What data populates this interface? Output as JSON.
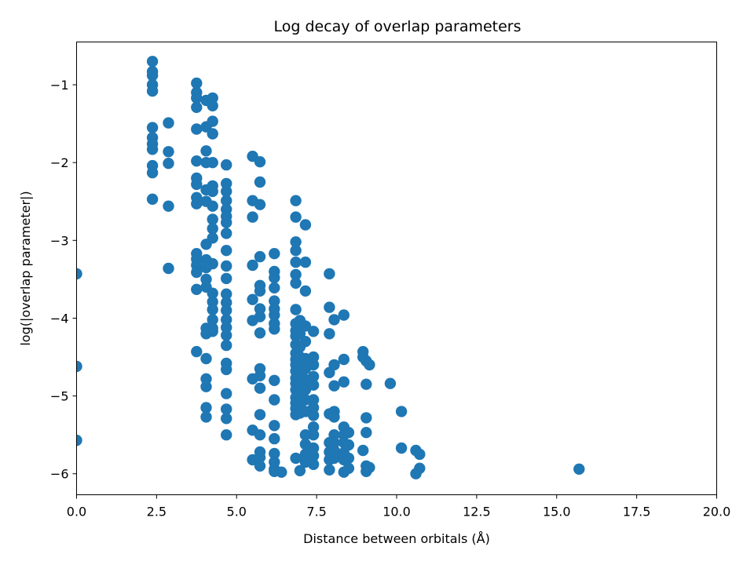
{
  "chart_data": {
    "type": "scatter",
    "title": "Log decay of overlap parameters",
    "xlabel": "Distance between orbitals (Å)",
    "ylabel": "log(|overlap parameter|)",
    "xlim": [
      0,
      20
    ],
    "ylim": [
      -6.27,
      -0.45
    ],
    "x_ticks": [
      0,
      2.5,
      5,
      7.5,
      10,
      12.5,
      15,
      17.5,
      20
    ],
    "x_tick_labels": [
      "0.0",
      "2.5",
      "5.0",
      "7.5",
      "10.0",
      "12.5",
      "15.0",
      "17.5",
      "20.0"
    ],
    "y_ticks": [
      -6,
      -5,
      -4,
      -3,
      -2,
      -1
    ],
    "y_tick_labels": [
      "−6",
      "−5",
      "−4",
      "−3",
      "−2",
      "−1"
    ],
    "grid": false,
    "marker_color": "#1f77b4",
    "series": [
      {
        "points": [
          [
            0.0,
            -3.43
          ],
          [
            0.0,
            -4.62
          ],
          [
            0.0,
            -5.57
          ],
          [
            2.37,
            -0.7
          ],
          [
            2.37,
            -0.83
          ],
          [
            2.37,
            -0.88
          ],
          [
            2.37,
            -1.0
          ],
          [
            2.37,
            -1.08
          ],
          [
            2.37,
            -1.55
          ],
          [
            2.37,
            -1.68
          ],
          [
            2.37,
            -1.76
          ],
          [
            2.37,
            -1.83
          ],
          [
            2.37,
            -2.04
          ],
          [
            2.37,
            -2.13
          ],
          [
            2.37,
            -2.47
          ],
          [
            2.87,
            -1.49
          ],
          [
            2.87,
            -1.86
          ],
          [
            2.87,
            -2.01
          ],
          [
            2.87,
            -2.56
          ],
          [
            2.87,
            -3.36
          ],
          [
            3.75,
            -0.98
          ],
          [
            3.75,
            -1.1
          ],
          [
            3.75,
            -1.17
          ],
          [
            3.75,
            -1.29
          ],
          [
            3.75,
            -1.57
          ],
          [
            3.75,
            -1.98
          ],
          [
            3.75,
            -2.2
          ],
          [
            3.75,
            -2.28
          ],
          [
            3.75,
            -2.45
          ],
          [
            3.75,
            -2.53
          ],
          [
            3.75,
            -3.17
          ],
          [
            3.75,
            -3.24
          ],
          [
            3.75,
            -3.32
          ],
          [
            3.75,
            -3.41
          ],
          [
            3.75,
            -3.63
          ],
          [
            3.75,
            -4.43
          ],
          [
            4.05,
            -1.2
          ],
          [
            4.05,
            -1.54
          ],
          [
            4.05,
            -1.85
          ],
          [
            4.05,
            -2.0
          ],
          [
            4.05,
            -2.35
          ],
          [
            4.05,
            -2.5
          ],
          [
            4.05,
            -3.05
          ],
          [
            4.05,
            -3.25
          ],
          [
            4.05,
            -3.35
          ],
          [
            4.05,
            -3.5
          ],
          [
            4.05,
            -3.6
          ],
          [
            4.05,
            -4.13
          ],
          [
            4.05,
            -4.2
          ],
          [
            4.05,
            -4.52
          ],
          [
            4.05,
            -4.78
          ],
          [
            4.05,
            -4.88
          ],
          [
            4.05,
            -5.15
          ],
          [
            4.05,
            -5.27
          ],
          [
            4.25,
            -1.17
          ],
          [
            4.25,
            -1.27
          ],
          [
            4.25,
            -1.47
          ],
          [
            4.25,
            -1.63
          ],
          [
            4.25,
            -2.0
          ],
          [
            4.25,
            -2.3
          ],
          [
            4.25,
            -2.37
          ],
          [
            4.25,
            -2.56
          ],
          [
            4.25,
            -2.73
          ],
          [
            4.25,
            -2.85
          ],
          [
            4.25,
            -2.97
          ],
          [
            4.25,
            -3.3
          ],
          [
            4.25,
            -3.68
          ],
          [
            4.25,
            -3.79
          ],
          [
            4.25,
            -3.89
          ],
          [
            4.25,
            -4.02
          ],
          [
            4.25,
            -4.13
          ],
          [
            4.25,
            -4.17
          ],
          [
            4.68,
            -2.03
          ],
          [
            4.68,
            -2.27
          ],
          [
            4.68,
            -2.37
          ],
          [
            4.68,
            -2.49
          ],
          [
            4.68,
            -2.6
          ],
          [
            4.68,
            -2.69
          ],
          [
            4.68,
            -2.77
          ],
          [
            4.68,
            -2.91
          ],
          [
            4.68,
            -3.13
          ],
          [
            4.68,
            -3.33
          ],
          [
            4.68,
            -3.49
          ],
          [
            4.68,
            -3.69
          ],
          [
            4.68,
            -3.8
          ],
          [
            4.68,
            -3.9
          ],
          [
            4.68,
            -4.02
          ],
          [
            4.68,
            -4.12
          ],
          [
            4.68,
            -4.22
          ],
          [
            4.68,
            -4.35
          ],
          [
            4.68,
            -4.58
          ],
          [
            4.68,
            -4.66
          ],
          [
            4.68,
            -4.97
          ],
          [
            4.68,
            -5.17
          ],
          [
            4.68,
            -5.29
          ],
          [
            4.68,
            -5.5
          ],
          [
            5.5,
            -1.92
          ],
          [
            5.5,
            -2.49
          ],
          [
            5.5,
            -2.7
          ],
          [
            5.5,
            -3.32
          ],
          [
            5.5,
            -3.76
          ],
          [
            5.5,
            -4.03
          ],
          [
            5.5,
            -4.78
          ],
          [
            5.5,
            -5.44
          ],
          [
            5.5,
            -5.82
          ],
          [
            5.73,
            -1.99
          ],
          [
            5.73,
            -2.25
          ],
          [
            5.73,
            -2.54
          ],
          [
            5.73,
            -3.21
          ],
          [
            5.73,
            -3.58
          ],
          [
            5.73,
            -3.65
          ],
          [
            5.73,
            -3.88
          ],
          [
            5.73,
            -3.98
          ],
          [
            5.73,
            -4.19
          ],
          [
            5.73,
            -4.65
          ],
          [
            5.73,
            -4.74
          ],
          [
            5.73,
            -4.9
          ],
          [
            5.73,
            -5.24
          ],
          [
            5.73,
            -5.5
          ],
          [
            5.73,
            -5.72
          ],
          [
            5.73,
            -5.79
          ],
          [
            5.73,
            -5.9
          ],
          [
            6.18,
            -3.17
          ],
          [
            6.18,
            -3.4
          ],
          [
            6.18,
            -3.48
          ],
          [
            6.18,
            -3.61
          ],
          [
            6.18,
            -3.78
          ],
          [
            6.18,
            -3.88
          ],
          [
            6.18,
            -3.96
          ],
          [
            6.18,
            -4.07
          ],
          [
            6.18,
            -4.14
          ],
          [
            6.18,
            -4.8
          ],
          [
            6.18,
            -5.05
          ],
          [
            6.18,
            -5.38
          ],
          [
            6.18,
            -5.55
          ],
          [
            6.18,
            -5.74
          ],
          [
            6.18,
            -5.85
          ],
          [
            6.18,
            -5.94
          ],
          [
            6.18,
            -5.97
          ],
          [
            6.4,
            -5.98
          ],
          [
            6.85,
            -2.49
          ],
          [
            6.85,
            -2.7
          ],
          [
            6.85,
            -3.02
          ],
          [
            6.85,
            -3.13
          ],
          [
            6.85,
            -3.28
          ],
          [
            6.85,
            -3.44
          ],
          [
            6.85,
            -3.55
          ],
          [
            6.85,
            -3.89
          ],
          [
            6.85,
            -4.07
          ],
          [
            6.85,
            -4.16
          ],
          [
            6.85,
            -4.23
          ],
          [
            6.85,
            -4.34
          ],
          [
            6.85,
            -4.45
          ],
          [
            6.85,
            -4.53
          ],
          [
            6.85,
            -4.6
          ],
          [
            6.85,
            -4.68
          ],
          [
            6.85,
            -4.77
          ],
          [
            6.85,
            -4.84
          ],
          [
            6.85,
            -4.92
          ],
          [
            6.85,
            -5.02
          ],
          [
            6.85,
            -5.09
          ],
          [
            6.85,
            -5.16
          ],
          [
            6.85,
            -5.24
          ],
          [
            6.85,
            -5.8
          ],
          [
            6.98,
            -4.03
          ],
          [
            6.98,
            -4.2
          ],
          [
            6.98,
            -4.37
          ],
          [
            6.98,
            -4.5
          ],
          [
            6.98,
            -4.6
          ],
          [
            6.98,
            -4.72
          ],
          [
            6.98,
            -4.82
          ],
          [
            6.98,
            -4.92
          ],
          [
            6.98,
            -5.02
          ],
          [
            6.98,
            -5.12
          ],
          [
            6.98,
            -5.22
          ],
          [
            6.98,
            -5.96
          ],
          [
            7.15,
            -2.8
          ],
          [
            7.15,
            -3.28
          ],
          [
            7.15,
            -3.65
          ],
          [
            7.15,
            -4.1
          ],
          [
            7.15,
            -4.3
          ],
          [
            7.15,
            -4.52
          ],
          [
            7.15,
            -4.65
          ],
          [
            7.15,
            -4.79
          ],
          [
            7.15,
            -4.92
          ],
          [
            7.15,
            -5.05
          ],
          [
            7.15,
            -5.2
          ],
          [
            7.15,
            -5.5
          ],
          [
            7.15,
            -5.62
          ],
          [
            7.15,
            -5.75
          ],
          [
            7.15,
            -5.85
          ],
          [
            7.4,
            -4.17
          ],
          [
            7.4,
            -4.5
          ],
          [
            7.4,
            -4.6
          ],
          [
            7.4,
            -4.75
          ],
          [
            7.4,
            -4.86
          ],
          [
            7.4,
            -5.05
          ],
          [
            7.4,
            -5.15
          ],
          [
            7.4,
            -5.25
          ],
          [
            7.4,
            -5.4
          ],
          [
            7.4,
            -5.5
          ],
          [
            7.4,
            -5.67
          ],
          [
            7.4,
            -5.77
          ],
          [
            7.4,
            -5.88
          ],
          [
            7.9,
            -3.43
          ],
          [
            7.9,
            -3.86
          ],
          [
            7.9,
            -4.2
          ],
          [
            7.9,
            -4.7
          ],
          [
            7.9,
            -5.23
          ],
          [
            7.9,
            -5.6
          ],
          [
            7.9,
            -5.72
          ],
          [
            7.9,
            -5.82
          ],
          [
            7.9,
            -5.95
          ],
          [
            8.05,
            -4.02
          ],
          [
            8.05,
            -4.6
          ],
          [
            8.05,
            -4.87
          ],
          [
            8.05,
            -5.2
          ],
          [
            8.05,
            -5.27
          ],
          [
            8.05,
            -5.5
          ],
          [
            8.05,
            -5.6
          ],
          [
            8.05,
            -5.7
          ],
          [
            8.05,
            -5.8
          ],
          [
            8.35,
            -3.96
          ],
          [
            8.35,
            -4.53
          ],
          [
            8.35,
            -4.82
          ],
          [
            8.35,
            -5.4
          ],
          [
            8.35,
            -5.5
          ],
          [
            8.35,
            -5.6
          ],
          [
            8.35,
            -5.73
          ],
          [
            8.35,
            -5.82
          ],
          [
            8.35,
            -5.98
          ],
          [
            8.5,
            -5.47
          ],
          [
            8.5,
            -5.63
          ],
          [
            8.5,
            -5.8
          ],
          [
            8.5,
            -5.93
          ],
          [
            8.95,
            -4.43
          ],
          [
            8.95,
            -4.5
          ],
          [
            8.95,
            -5.7
          ],
          [
            9.05,
            -4.55
          ],
          [
            9.05,
            -4.85
          ],
          [
            9.05,
            -5.28
          ],
          [
            9.05,
            -5.47
          ],
          [
            9.05,
            -5.9
          ],
          [
            9.05,
            -5.97
          ],
          [
            9.15,
            -4.6
          ],
          [
            9.15,
            -5.92
          ],
          [
            9.8,
            -4.84
          ],
          [
            10.15,
            -5.2
          ],
          [
            10.15,
            -5.67
          ],
          [
            10.6,
            -5.7
          ],
          [
            10.6,
            -6.0
          ],
          [
            10.72,
            -5.75
          ],
          [
            10.72,
            -5.93
          ],
          [
            15.7,
            -5.94
          ]
        ]
      }
    ]
  }
}
